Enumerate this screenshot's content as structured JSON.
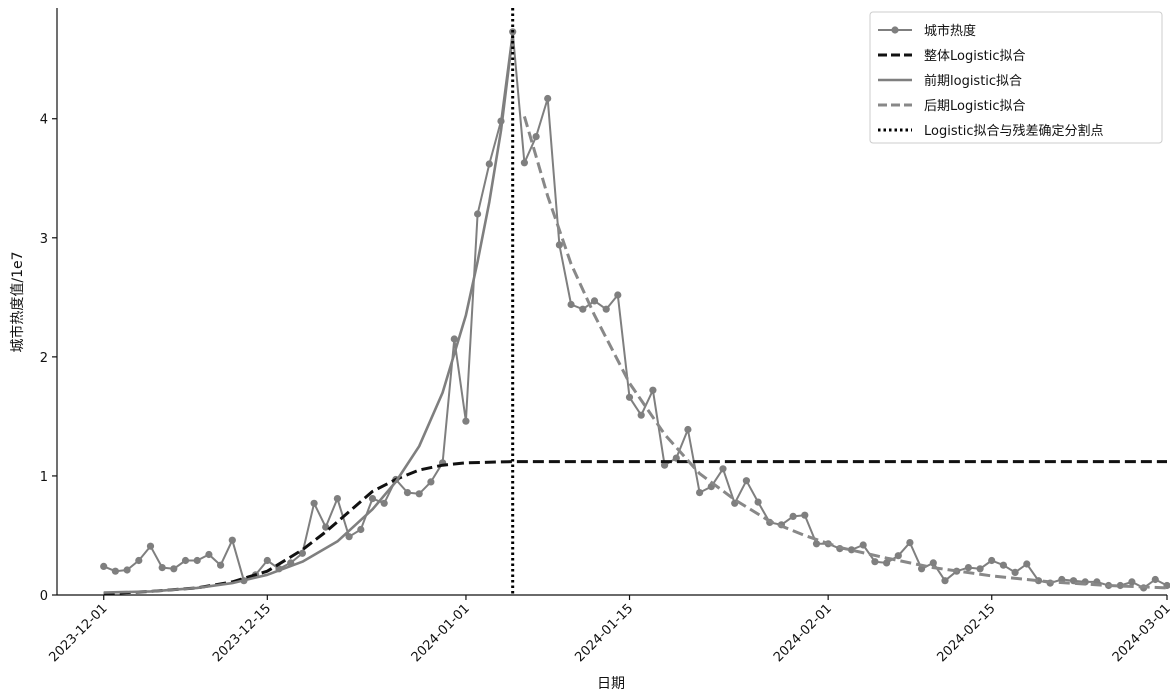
{
  "chart_data": {
    "type": "line",
    "xlabel": "日期",
    "ylabel": "城市热度值/1e7",
    "xlim": [
      "2023-11-27",
      "2024-03-01"
    ],
    "ylim": [
      0,
      4.93
    ],
    "x_ticks": [
      "2023-12-01",
      "2023-12-15",
      "2024-01-01",
      "2024-01-15",
      "2024-02-01",
      "2024-02-15",
      "2024-03-01"
    ],
    "y_ticks": [
      0,
      1,
      2,
      3,
      4
    ],
    "legend_position": "top-right",
    "split_date": "2024-01-05",
    "series": [
      {
        "name": "城市热度",
        "style": "line-markers",
        "color": "#7f7f7f",
        "points": [
          [
            "2023-12-01",
            0.24
          ],
          [
            "2023-12-02",
            0.2
          ],
          [
            "2023-12-03",
            0.21
          ],
          [
            "2023-12-04",
            0.29
          ],
          [
            "2023-12-05",
            0.41
          ],
          [
            "2023-12-06",
            0.23
          ],
          [
            "2023-12-07",
            0.22
          ],
          [
            "2023-12-08",
            0.29
          ],
          [
            "2023-12-09",
            0.29
          ],
          [
            "2023-12-10",
            0.34
          ],
          [
            "2023-12-11",
            0.25
          ],
          [
            "2023-12-12",
            0.46
          ],
          [
            "2023-12-13",
            0.12
          ],
          [
            "2023-12-14",
            0.17
          ],
          [
            "2023-12-15",
            0.29
          ],
          [
            "2023-12-16",
            0.22
          ],
          [
            "2023-12-17",
            0.27
          ],
          [
            "2023-12-18",
            0.35
          ],
          [
            "2023-12-19",
            0.77
          ],
          [
            "2023-12-20",
            0.57
          ],
          [
            "2023-12-21",
            0.81
          ],
          [
            "2023-12-22",
            0.49
          ],
          [
            "2023-12-23",
            0.55
          ],
          [
            "2023-12-24",
            0.81
          ],
          [
            "2023-12-25",
            0.77
          ],
          [
            "2023-12-26",
            0.97
          ],
          [
            "2023-12-27",
            0.86
          ],
          [
            "2023-12-28",
            0.85
          ],
          [
            "2023-12-29",
            0.95
          ],
          [
            "2023-12-30",
            1.11
          ],
          [
            "2023-12-31",
            2.15
          ],
          [
            "2024-01-01",
            1.46
          ],
          [
            "2024-01-02",
            3.2
          ],
          [
            "2024-01-03",
            3.62
          ],
          [
            "2024-01-04",
            3.98
          ],
          [
            "2024-01-05",
            4.73
          ],
          [
            "2024-01-06",
            3.63
          ],
          [
            "2024-01-07",
            3.85
          ],
          [
            "2024-01-08",
            4.17
          ],
          [
            "2024-01-09",
            2.94
          ],
          [
            "2024-01-10",
            2.44
          ],
          [
            "2024-01-11",
            2.4
          ],
          [
            "2024-01-12",
            2.47
          ],
          [
            "2024-01-13",
            2.4
          ],
          [
            "2024-01-14",
            2.52
          ],
          [
            "2024-01-15",
            1.66
          ],
          [
            "2024-01-16",
            1.51
          ],
          [
            "2024-01-17",
            1.72
          ],
          [
            "2024-01-18",
            1.09
          ],
          [
            "2024-01-19",
            1.15
          ],
          [
            "2024-01-20",
            1.39
          ],
          [
            "2024-01-21",
            0.86
          ],
          [
            "2024-01-22",
            0.91
          ],
          [
            "2024-01-23",
            1.06
          ],
          [
            "2024-01-24",
            0.77
          ],
          [
            "2024-01-25",
            0.96
          ],
          [
            "2024-01-26",
            0.78
          ],
          [
            "2024-01-27",
            0.61
          ],
          [
            "2024-01-28",
            0.59
          ],
          [
            "2024-01-29",
            0.66
          ],
          [
            "2024-01-30",
            0.67
          ],
          [
            "2024-01-31",
            0.43
          ],
          [
            "2024-02-01",
            0.43
          ],
          [
            "2024-02-02",
            0.39
          ],
          [
            "2024-02-03",
            0.38
          ],
          [
            "2024-02-04",
            0.42
          ],
          [
            "2024-02-05",
            0.28
          ],
          [
            "2024-02-06",
            0.27
          ],
          [
            "2024-02-07",
            0.33
          ],
          [
            "2024-02-08",
            0.44
          ],
          [
            "2024-02-09",
            0.22
          ],
          [
            "2024-02-10",
            0.27
          ],
          [
            "2024-02-11",
            0.12
          ],
          [
            "2024-02-12",
            0.2
          ],
          [
            "2024-02-13",
            0.23
          ],
          [
            "2024-02-14",
            0.22
          ],
          [
            "2024-02-15",
            0.29
          ],
          [
            "2024-02-16",
            0.25
          ],
          [
            "2024-02-17",
            0.19
          ],
          [
            "2024-02-18",
            0.26
          ],
          [
            "2024-02-19",
            0.12
          ],
          [
            "2024-02-20",
            0.1
          ],
          [
            "2024-02-21",
            0.13
          ],
          [
            "2024-02-22",
            0.12
          ],
          [
            "2024-02-23",
            0.11
          ],
          [
            "2024-02-24",
            0.11
          ],
          [
            "2024-02-25",
            0.08
          ],
          [
            "2024-02-26",
            0.08
          ],
          [
            "2024-02-27",
            0.11
          ],
          [
            "2024-02-28",
            0.06
          ],
          [
            "2024-02-29",
            0.13
          ],
          [
            "2024-03-01",
            0.08
          ]
        ]
      },
      {
        "name": "整体Logistic拟合",
        "style": "dashed",
        "color": "#111111",
        "points": [
          [
            "2023-12-01",
            0.01
          ],
          [
            "2023-12-05",
            0.03
          ],
          [
            "2023-12-09",
            0.06
          ],
          [
            "2023-12-12",
            0.11
          ],
          [
            "2023-12-15",
            0.2
          ],
          [
            "2023-12-18",
            0.38
          ],
          [
            "2023-12-20",
            0.53
          ],
          [
            "2023-12-22",
            0.7
          ],
          [
            "2023-12-24",
            0.87
          ],
          [
            "2023-12-26",
            0.97
          ],
          [
            "2023-12-28",
            1.05
          ],
          [
            "2023-12-30",
            1.09
          ],
          [
            "2024-01-01",
            1.11
          ],
          [
            "2024-01-05",
            1.12
          ],
          [
            "2024-01-15",
            1.12
          ],
          [
            "2024-02-01",
            1.12
          ],
          [
            "2024-02-15",
            1.12
          ],
          [
            "2024-03-01",
            1.12
          ]
        ]
      },
      {
        "name": "前期logistic拟合",
        "style": "solid",
        "color": "#7f7f7f",
        "points": [
          [
            "2023-12-01",
            0.02
          ],
          [
            "2023-12-05",
            0.03
          ],
          [
            "2023-12-09",
            0.06
          ],
          [
            "2023-12-12",
            0.1
          ],
          [
            "2023-12-15",
            0.17
          ],
          [
            "2023-12-18",
            0.28
          ],
          [
            "2023-12-21",
            0.45
          ],
          [
            "2023-12-24",
            0.72
          ],
          [
            "2023-12-26",
            0.95
          ],
          [
            "2023-12-28",
            1.25
          ],
          [
            "2023-12-30",
            1.7
          ],
          [
            "2024-01-01",
            2.35
          ],
          [
            "2024-01-02",
            2.8
          ],
          [
            "2024-01-03",
            3.3
          ],
          [
            "2024-01-04",
            3.9
          ],
          [
            "2024-01-05",
            4.7
          ]
        ]
      },
      {
        "name": "后期Logistic拟合",
        "style": "dashed",
        "color": "#888888",
        "points": [
          [
            "2024-01-06",
            4.02
          ],
          [
            "2024-01-08",
            3.35
          ],
          [
            "2024-01-10",
            2.78
          ],
          [
            "2024-01-12",
            2.35
          ],
          [
            "2024-01-15",
            1.78
          ],
          [
            "2024-01-18",
            1.35
          ],
          [
            "2024-01-21",
            1.02
          ],
          [
            "2024-01-24",
            0.8
          ],
          [
            "2024-01-27",
            0.62
          ],
          [
            "2024-01-30",
            0.5
          ],
          [
            "2024-02-02",
            0.4
          ],
          [
            "2024-02-06",
            0.31
          ],
          [
            "2024-02-10",
            0.23
          ],
          [
            "2024-02-15",
            0.16
          ],
          [
            "2024-02-20",
            0.11
          ],
          [
            "2024-02-25",
            0.08
          ],
          [
            "2024-03-01",
            0.06
          ]
        ]
      },
      {
        "name": "Logistic拟合与残差确定分割点",
        "style": "dotted-vertical",
        "color": "#000000",
        "x": "2024-01-05"
      }
    ]
  }
}
